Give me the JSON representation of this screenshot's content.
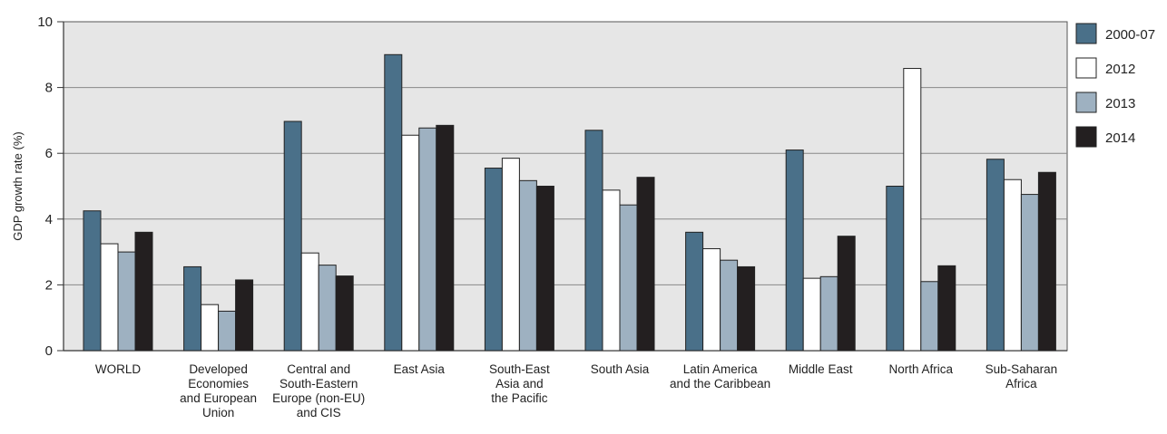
{
  "chart_data": {
    "type": "bar",
    "title": "",
    "xlabel": "",
    "ylabel": "GDP growth rate (%)",
    "ylim": [
      0,
      10
    ],
    "yticks": [
      0,
      2,
      4,
      6,
      8,
      10
    ],
    "grid": true,
    "legend_position": "right",
    "categories": [
      "WORLD",
      "Developed\nEconomies\nand European\nUnion",
      "Central and\nSouth-Eastern\nEurope (non-EU)\nand CIS",
      "East Asia",
      "South-East\nAsia and\nthe Pacific",
      "South Asia",
      "Latin America\nand the Caribbean",
      "Middle East",
      "North Africa",
      "Sub-Saharan\nAfrica"
    ],
    "series": [
      {
        "name": "2000-07",
        "color": "#4a7089",
        "values": [
          4.25,
          2.55,
          6.97,
          9.0,
          5.55,
          6.7,
          3.6,
          6.1,
          5.0,
          5.82
        ]
      },
      {
        "name": "2012",
        "color": "#ffffff",
        "values": [
          3.25,
          1.4,
          2.97,
          6.55,
          5.85,
          4.88,
          3.1,
          2.2,
          8.58,
          5.2
        ]
      },
      {
        "name": "2013",
        "color": "#9eb1c1",
        "values": [
          3.0,
          1.2,
          2.6,
          6.77,
          5.17,
          4.43,
          2.75,
          2.25,
          2.1,
          4.75
        ]
      },
      {
        "name": "2014",
        "color": "#231f20",
        "values": [
          3.6,
          2.15,
          2.27,
          6.85,
          5.0,
          5.27,
          2.55,
          3.48,
          2.58,
          5.42
        ]
      }
    ],
    "plot_background": "#e6e6e6",
    "grid_color": "#888888"
  }
}
